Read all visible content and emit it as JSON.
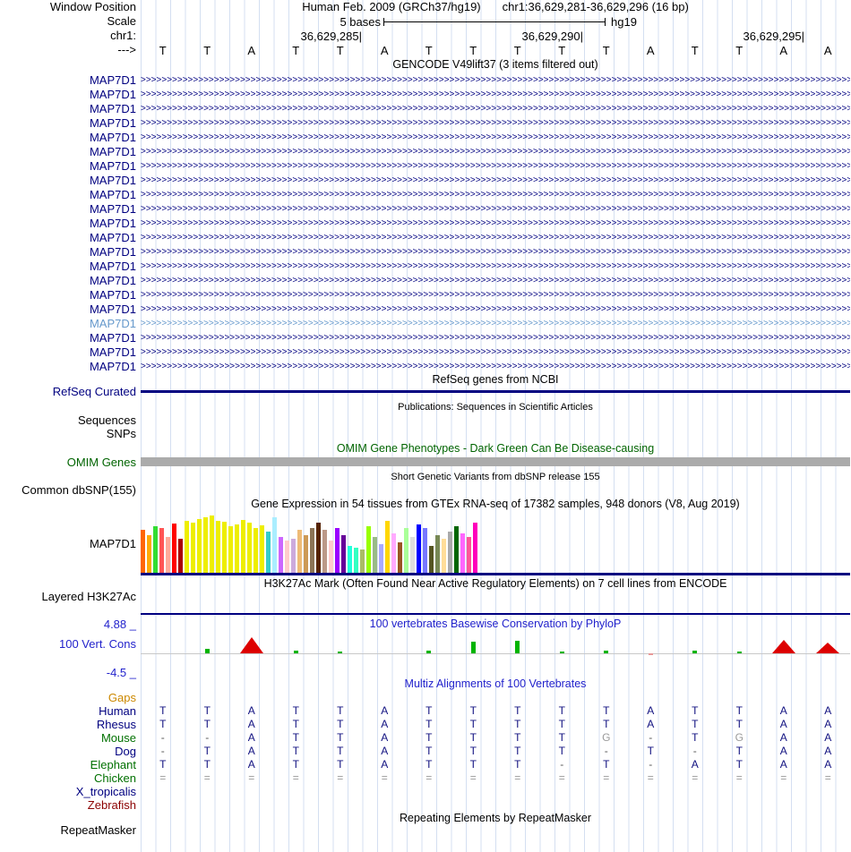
{
  "header": {
    "window_position_label": "Window Position",
    "assembly": "Human Feb. 2009 (GRCh37/hg19)",
    "position": "chr1:36,629,281-36,629,296 (16 bp)",
    "scale_label": "Scale",
    "scale_text": "5 bases",
    "scale_right": "hg19",
    "chrom_label": "chr1:",
    "direction_label": "--->",
    "ticks": [
      "36,629,285|",
      "36,629,290|",
      "36,629,295|"
    ]
  },
  "ruler": {
    "bases": [
      "T",
      "T",
      "A",
      "T",
      "T",
      "A",
      "T",
      "T",
      "T",
      "T",
      "T",
      "A",
      "T",
      "T",
      "A",
      "A"
    ]
  },
  "gencode": {
    "title": "GENCODE V49lift37 (3 items filtered out)",
    "transcript_label": "MAP7D1",
    "transcript_count": 21,
    "highlighted_index": 17,
    "arrow_char": ">"
  },
  "refseq": {
    "title": "RefSeq genes from NCBI",
    "label": "RefSeq Curated"
  },
  "publications": {
    "title": "Publications: Sequences in Scientific Articles",
    "labels": [
      "Sequences",
      "SNPs"
    ]
  },
  "omim": {
    "title": "OMIM Gene Phenotypes - Dark Green Can Be Disease-causing",
    "label": "OMIM Genes"
  },
  "dbsnp": {
    "title": "Short Genetic Variants from dbSNP release 155",
    "label": "Common dbSNP(155)"
  },
  "gtex": {
    "title": "Gene Expression in 54 tissues from GTEx RNA-seq of 17382 samples, 948 donors (V8, Aug 2019)",
    "label": "MAP7D1"
  },
  "h3k27ac": {
    "title": "H3K27Ac Mark (Often Found Near Active Regulatory Elements) on 7 cell lines from ENCODE",
    "label": "Layered H3K27Ac"
  },
  "conservation": {
    "title": "100 vertebrates Basewise Conservation by PhyloP",
    "label": "100 Vert. Cons",
    "max": "4.88 _",
    "min": "-4.5 _"
  },
  "multiz": {
    "title": "Multiz Alignments of 100 Vertebrates",
    "species": [
      {
        "name": "Gaps",
        "color": "#cc8800",
        "letters": [
          "",
          "",
          "",
          "",
          "",
          "",
          "",
          "",
          "",
          "",
          "",
          "",
          "",
          "",
          "",
          ""
        ]
      },
      {
        "name": "Human",
        "color": "#000080",
        "letters": [
          "T",
          "T",
          "A",
          "T",
          "T",
          "A",
          "T",
          "T",
          "T",
          "T",
          "T",
          "A",
          "T",
          "T",
          "A",
          "A"
        ]
      },
      {
        "name": "Rhesus",
        "color": "#000080",
        "letters": [
          "T",
          "T",
          "A",
          "T",
          "T",
          "A",
          "T",
          "T",
          "T",
          "T",
          "T",
          "A",
          "T",
          "T",
          "A",
          "A"
        ]
      },
      {
        "name": "Mouse",
        "color": "#007000",
        "letters": [
          "-",
          "-",
          "A",
          "T",
          "T",
          "A",
          "T",
          "T",
          "T",
          "T",
          "G",
          "-",
          "T",
          "G",
          "A",
          "A"
        ],
        "gray": [
          10,
          13
        ]
      },
      {
        "name": "Dog",
        "color": "#000080",
        "letters": [
          "-",
          "T",
          "A",
          "T",
          "T",
          "A",
          "T",
          "T",
          "T",
          "T",
          "-",
          "T",
          "-",
          "T",
          "A",
          "A"
        ]
      },
      {
        "name": "Elephant",
        "color": "#007000",
        "letters": [
          "T",
          "T",
          "A",
          "T",
          "T",
          "A",
          "T",
          "T",
          "T",
          "-",
          "T",
          "-",
          "A",
          "T",
          "A",
          "A"
        ]
      },
      {
        "name": "Chicken",
        "color": "#007000",
        "letters": [
          "=",
          "=",
          "=",
          "=",
          "=",
          "=",
          "=",
          "=",
          "=",
          "=",
          "=",
          "=",
          "=",
          "=",
          "=",
          "="
        ]
      },
      {
        "name": "X_tropicalis",
        "color": "#000080",
        "letters": [
          "",
          "",
          "",
          "",
          "",
          "",
          "",
          "",
          "",
          "",
          "",
          "",
          "",
          "",
          "",
          ""
        ]
      },
      {
        "name": "Zebrafish",
        "color": "#8b0000",
        "letters": [
          "",
          "",
          "",
          "",
          "",
          "",
          "",
          "",
          "",
          "",
          "",
          "",
          "",
          "",
          "",
          ""
        ]
      }
    ]
  },
  "repeatmasker": {
    "title": "Repeating Elements by RepeatMasker",
    "label": "RepeatMasker"
  },
  "colors": {
    "navy": "#000080",
    "transcript_light": "#6699cc",
    "omim_green": "#006400",
    "omim_bar_gray": "#ababab",
    "cons_blue": "#2222cc",
    "align_letter": "#101080",
    "phylop_positive": "#00b400",
    "phylop_negative": "#dd0000"
  },
  "chart_data": [
    {
      "type": "bar",
      "title": "Gene Expression in 54 tissues from GTEx RNA-seq of 17382 samples, 948 donors (V8, Aug 2019)",
      "gene": "MAP7D1",
      "value_unit": "px",
      "bar_colors": [
        "#FF6600",
        "#FFAA00",
        "#33DD33",
        "#FF5555",
        "#FFAA99",
        "#FF0000",
        "#AA0000",
        "#EEEE00",
        "#EEEE00",
        "#EEEE00",
        "#EEEE00",
        "#EEEE00",
        "#EEEE00",
        "#EEEE00",
        "#EEEE00",
        "#EEEE00",
        "#EEEE00",
        "#EEEE00",
        "#EEEE00",
        "#EEEE00",
        "#33CCCC",
        "#AAEEFF",
        "#CC66FF",
        "#FFCCCC",
        "#CCAADD",
        "#EEBB77",
        "#CC9955",
        "#8B7355",
        "#552200",
        "#BB9988",
        "#FFCCCC",
        "#9900FF",
        "#660099",
        "#22FFDD",
        "#33FFC2",
        "#AABB66",
        "#99FF00",
        "#99BB88",
        "#AAAAFF",
        "#FFD700",
        "#FFAAFF",
        "#995522",
        "#AAFF99",
        "#DDDDDD",
        "#0000FF",
        "#7777FF",
        "#555522",
        "#778855",
        "#FFDD99",
        "#AAAAAA",
        "#006600",
        "#FF66FF",
        "#FF5599",
        "#FF00BB"
      ],
      "values": [
        48,
        42,
        52,
        50,
        40,
        55,
        38,
        58,
        56,
        60,
        62,
        64,
        58,
        57,
        52,
        54,
        59,
        56,
        50,
        53,
        46,
        62,
        40,
        36,
        38,
        48,
        42,
        50,
        56,
        48,
        36,
        50,
        42,
        30,
        28,
        26,
        52,
        40,
        32,
        58,
        44,
        34,
        50,
        40,
        54,
        50,
        30,
        42,
        38,
        46,
        52,
        44,
        40,
        56
      ]
    },
    {
      "type": "bar",
      "title": "100 vertebrates Basewise Conservation by PhyloP",
      "ylim": [
        -4.5,
        4.88
      ],
      "x_positions": [
        36629281,
        36629282,
        36629283,
        36629284,
        36629285,
        36629286,
        36629287,
        36629288,
        36629289,
        36629290,
        36629291,
        36629292,
        36629293,
        36629294,
        36629295,
        36629296
      ],
      "values": [
        0,
        0.6,
        -3.2,
        0.4,
        0.3,
        0,
        0.4,
        1.6,
        1.7,
        0.3,
        0.4,
        -0.3,
        0.4,
        0.3,
        -2.8,
        -2.2
      ]
    }
  ]
}
